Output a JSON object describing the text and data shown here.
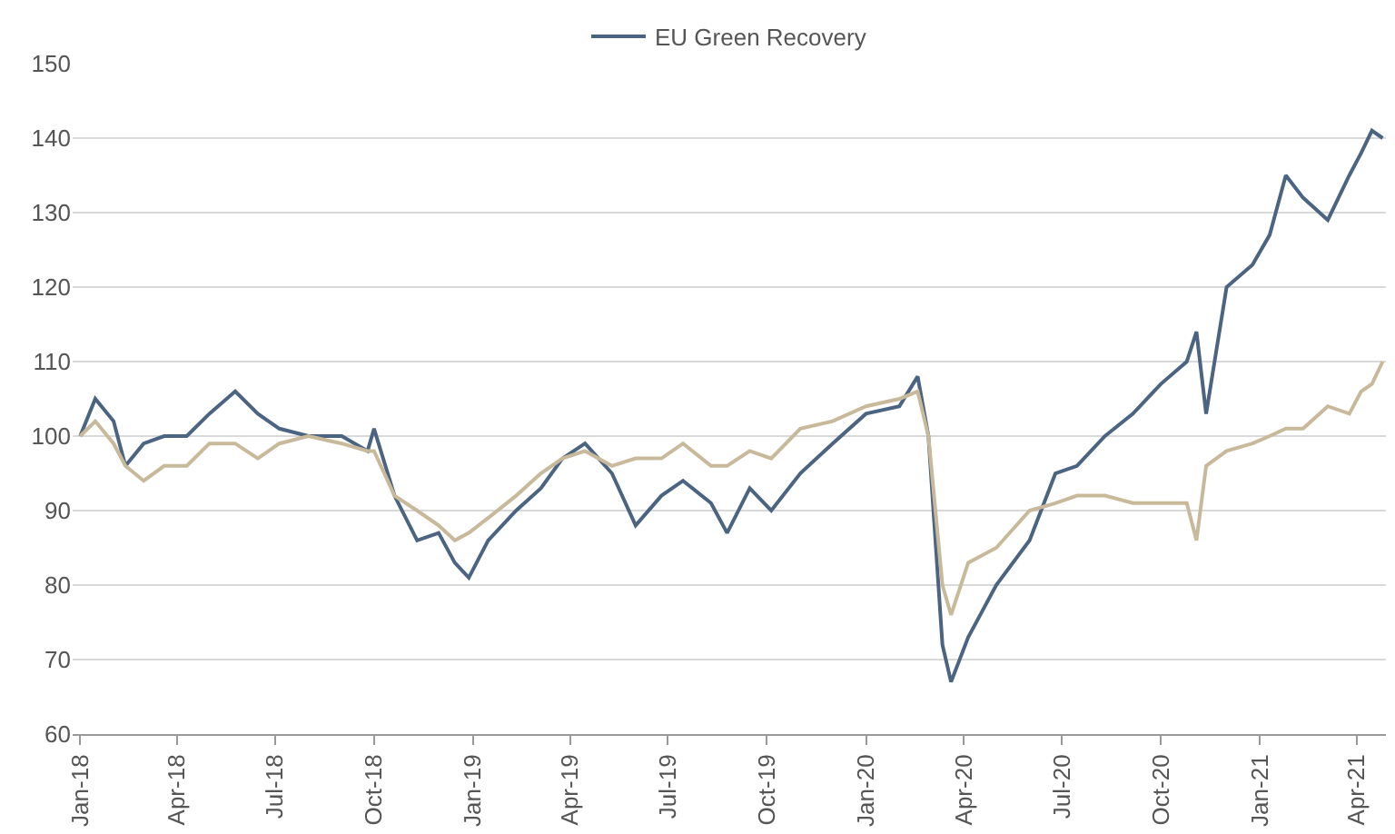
{
  "chart_data": {
    "type": "line",
    "x": [
      "2018-01-01",
      "2018-01-15",
      "2018-02-01",
      "2018-02-12",
      "2018-03-01",
      "2018-03-20",
      "2018-04-10",
      "2018-05-01",
      "2018-05-25",
      "2018-06-15",
      "2018-07-05",
      "2018-08-01",
      "2018-09-01",
      "2018-09-25",
      "2018-10-01",
      "2018-10-20",
      "2018-11-10",
      "2018-11-30",
      "2018-12-15",
      "2018-12-28",
      "2019-01-15",
      "2019-02-10",
      "2019-03-05",
      "2019-03-25",
      "2019-04-15",
      "2019-05-10",
      "2019-06-01",
      "2019-06-25",
      "2019-07-15",
      "2019-08-10",
      "2019-08-25",
      "2019-09-15",
      "2019-10-05",
      "2019-11-01",
      "2019-12-01",
      "2020-01-01",
      "2020-02-01",
      "2020-02-18",
      "2020-02-28",
      "2020-03-12",
      "2020-03-20",
      "2020-04-05",
      "2020-05-01",
      "2020-06-01",
      "2020-06-25",
      "2020-07-15",
      "2020-08-10",
      "2020-09-05",
      "2020-10-01",
      "2020-10-25",
      "2020-11-03",
      "2020-11-12",
      "2020-12-01",
      "2020-12-25",
      "2021-01-10",
      "2021-01-25",
      "2021-02-10",
      "2021-03-05",
      "2021-03-25",
      "2021-04-05",
      "2021-04-15",
      "2021-04-25"
    ],
    "series": [
      {
        "name": "EU Green Recovery",
        "color": "#4b6482",
        "values": [
          100,
          105,
          102,
          96,
          99,
          100,
          100,
          103,
          106,
          103,
          101,
          100,
          100,
          98,
          101,
          92,
          86,
          87,
          83,
          81,
          86,
          90,
          93,
          97,
          99,
          95,
          88,
          92,
          94,
          91,
          87,
          93,
          90,
          95,
          99,
          103,
          104,
          108,
          100,
          72,
          67,
          73,
          80,
          86,
          95,
          96,
          100,
          103,
          107,
          110,
          114,
          103,
          120,
          123,
          127,
          135,
          132,
          129,
          135,
          138,
          141,
          140
        ]
      },
      {
        "color": "#c9b99b",
        "values": [
          100,
          102,
          99,
          96,
          94,
          96,
          96,
          99,
          99,
          97,
          99,
          100,
          99,
          98,
          98,
          92,
          90,
          88,
          86,
          87,
          89,
          92,
          95,
          97,
          98,
          96,
          97,
          97,
          99,
          96,
          96,
          98,
          97,
          101,
          102,
          104,
          105,
          106,
          100,
          80,
          76,
          83,
          85,
          90,
          91,
          92,
          92,
          91,
          91,
          91,
          86,
          96,
          98,
          99,
          100,
          101,
          101,
          104,
          103,
          106,
          107,
          110
        ]
      }
    ],
    "ylim": [
      60,
      150
    ],
    "yticks": [
      60,
      70,
      80,
      90,
      100,
      110,
      120,
      130,
      140,
      150
    ],
    "xlim": [
      "2017-12-25",
      "2021-04-28"
    ],
    "xticks": [
      {
        "value": "2018-01-01",
        "label": "Jan-18"
      },
      {
        "value": "2018-04-01",
        "label": "Apr-18"
      },
      {
        "value": "2018-07-01",
        "label": "Jul-18"
      },
      {
        "value": "2018-10-01",
        "label": "Oct-18"
      },
      {
        "value": "2019-01-01",
        "label": "Jan-19"
      },
      {
        "value": "2019-04-01",
        "label": "Apr-19"
      },
      {
        "value": "2019-07-01",
        "label": "Jul-19"
      },
      {
        "value": "2019-10-01",
        "label": "Oct-19"
      },
      {
        "value": "2020-01-01",
        "label": "Jan-20"
      },
      {
        "value": "2020-04-01",
        "label": "Apr-20"
      },
      {
        "value": "2020-07-01",
        "label": "Jul-20"
      },
      {
        "value": "2020-10-01",
        "label": "Oct-20"
      },
      {
        "value": "2021-01-01",
        "label": "Jan-21"
      },
      {
        "value": "2021-04-01",
        "label": "Apr-21"
      }
    ],
    "grid": "y",
    "legend": "top",
    "marker": "none",
    "line_style": "solid"
  }
}
